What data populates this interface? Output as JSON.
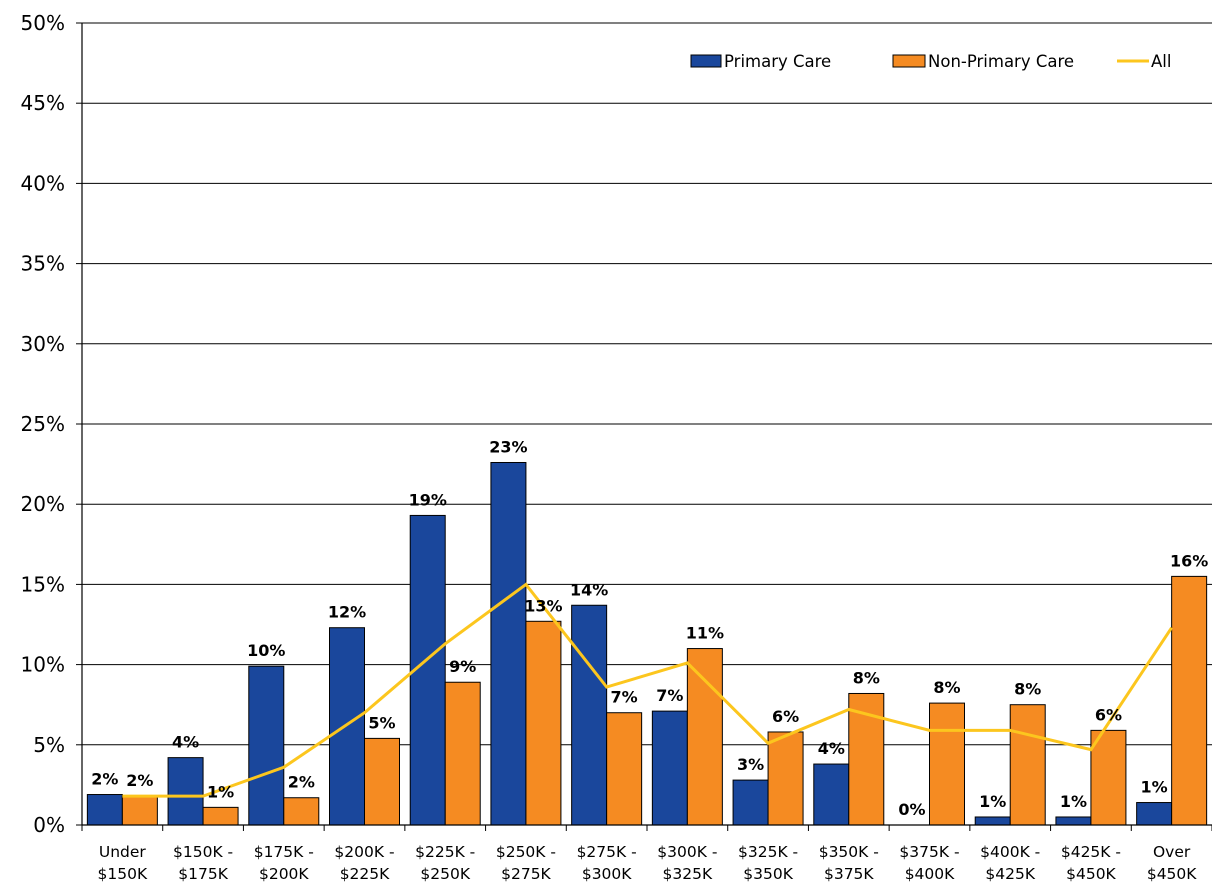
{
  "chart_data": {
    "type": "bar",
    "title": "",
    "xlabel": "",
    "ylabel": "",
    "ylim": [
      0,
      50
    ],
    "y_ticks": [
      "0%",
      "5%",
      "10%",
      "15%",
      "20%",
      "25%",
      "30%",
      "35%",
      "40%",
      "45%",
      "50%"
    ],
    "y_tick_values": [
      0,
      5,
      10,
      15,
      20,
      25,
      30,
      35,
      40,
      45,
      50
    ],
    "grid": "horizontal",
    "legend_position": "top-right",
    "categories": [
      [
        "Under",
        "$150K"
      ],
      [
        "$150K -",
        "$175K"
      ],
      [
        "$175K -",
        "$200K"
      ],
      [
        "$200K -",
        "$225K"
      ],
      [
        "$225K -",
        "$250K"
      ],
      [
        "$250K -",
        "$275K"
      ],
      [
        "$275K -",
        "$300K"
      ],
      [
        "$300K -",
        "$325K"
      ],
      [
        "$325K -",
        "$350K"
      ],
      [
        "$350K -",
        "$375K"
      ],
      [
        "$375K -",
        "$400K"
      ],
      [
        "$400K -",
        "$425K"
      ],
      [
        "$425K -",
        "$450K"
      ],
      [
        "Over",
        "$450K"
      ]
    ],
    "series": [
      {
        "name": "Primary Care",
        "kind": "bar",
        "color": "#1a479c",
        "values": [
          1.9,
          4.2,
          9.9,
          12.3,
          19.3,
          22.6,
          13.7,
          7.1,
          2.8,
          3.8,
          0.0,
          0.5,
          0.5,
          1.4
        ],
        "labels": [
          "2%",
          "4%",
          "10%",
          "12%",
          "19%",
          "23%",
          "14%",
          "7%",
          "3%",
          "4%",
          "0%",
          "1%",
          "1%",
          "1%"
        ]
      },
      {
        "name": "Non-Primary Care",
        "kind": "bar",
        "color": "#f58b22",
        "values": [
          1.8,
          1.1,
          1.7,
          5.4,
          8.9,
          12.7,
          7.0,
          11.0,
          5.8,
          8.2,
          7.6,
          7.5,
          5.9,
          15.5
        ],
        "labels": [
          "2%",
          "1%",
          "2%",
          "5%",
          "9%",
          "13%",
          "7%",
          "11%",
          "6%",
          "8%",
          "8%",
          "8%",
          "6%",
          "16%"
        ]
      },
      {
        "name": "All",
        "kind": "line",
        "color": "#fcc61e",
        "values": [
          1.8,
          1.8,
          3.6,
          7.0,
          11.3,
          15.0,
          8.6,
          10.1,
          5.1,
          7.2,
          5.9,
          5.9,
          4.7,
          12.3
        ]
      }
    ]
  }
}
